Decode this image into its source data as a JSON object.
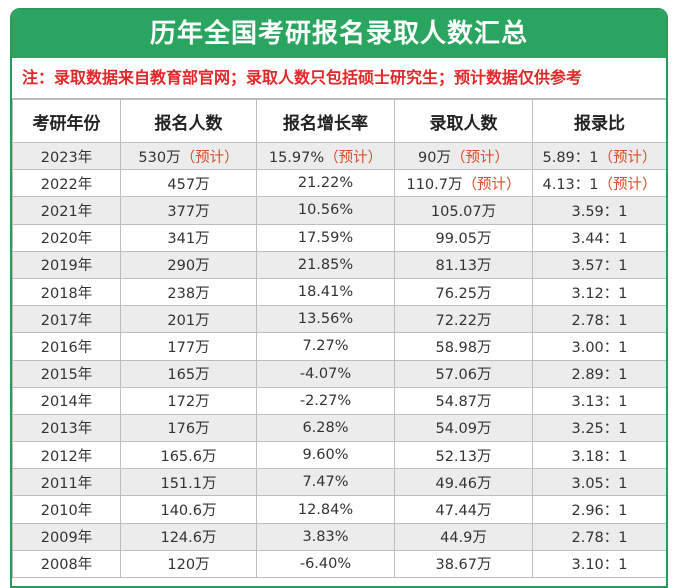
{
  "title": "历年全国考研报名录取人数汇总",
  "note": "注：录取数据来自教育部官网；录取人数只包括硕士研究生；预计数据仅供参考",
  "colors": {
    "header_green": "#2aa55f",
    "note_red": "#e0282a",
    "estimate": "#d94b2b"
  },
  "columns": [
    "考研年份",
    "报名人数",
    "报名增长率",
    "录取人数",
    "报录比"
  ],
  "rows": [
    {
      "year": "2023年",
      "applicants": "530万",
      "applicants_note": "（预计）",
      "growth": "15.97%",
      "growth_note": "（预计）",
      "admitted": "90万",
      "admitted_note": "（预计）",
      "ratio": "5.89：1",
      "ratio_note": "（预计）"
    },
    {
      "year": "2022年",
      "applicants": "457万",
      "applicants_note": "",
      "growth": "21.22%",
      "growth_note": "",
      "admitted": "110.7万",
      "admitted_note": "（预计）",
      "ratio": "4.13：1",
      "ratio_note": "（预计）"
    },
    {
      "year": "2021年",
      "applicants": "377万",
      "applicants_note": "",
      "growth": "10.56%",
      "growth_note": "",
      "admitted": "105.07万",
      "admitted_note": "",
      "ratio": "3.59：1",
      "ratio_note": ""
    },
    {
      "year": "2020年",
      "applicants": "341万",
      "applicants_note": "",
      "growth": "17.59%",
      "growth_note": "",
      "admitted": "99.05万",
      "admitted_note": "",
      "ratio": "3.44：1",
      "ratio_note": ""
    },
    {
      "year": "2019年",
      "applicants": "290万",
      "applicants_note": "",
      "growth": "21.85%",
      "growth_note": "",
      "admitted": "81.13万",
      "admitted_note": "",
      "ratio": "3.57：1",
      "ratio_note": ""
    },
    {
      "year": "2018年",
      "applicants": "238万",
      "applicants_note": "",
      "growth": "18.41%",
      "growth_note": "",
      "admitted": "76.25万",
      "admitted_note": "",
      "ratio": "3.12：1",
      "ratio_note": ""
    },
    {
      "year": "2017年",
      "applicants": "201万",
      "applicants_note": "",
      "growth": "13.56%",
      "growth_note": "",
      "admitted": "72.22万",
      "admitted_note": "",
      "ratio": "2.78：1",
      "ratio_note": ""
    },
    {
      "year": "2016年",
      "applicants": "177万",
      "applicants_note": "",
      "growth": "7.27%",
      "growth_note": "",
      "admitted": "58.98万",
      "admitted_note": "",
      "ratio": "3.00：1",
      "ratio_note": ""
    },
    {
      "year": "2015年",
      "applicants": "165万",
      "applicants_note": "",
      "growth": "-4.07%",
      "growth_note": "",
      "admitted": "57.06万",
      "admitted_note": "",
      "ratio": "2.89：1",
      "ratio_note": ""
    },
    {
      "year": "2014年",
      "applicants": "172万",
      "applicants_note": "",
      "growth": "-2.27%",
      "growth_note": "",
      "admitted": "54.87万",
      "admitted_note": "",
      "ratio": "3.13：1",
      "ratio_note": ""
    },
    {
      "year": "2013年",
      "applicants": "176万",
      "applicants_note": "",
      "growth": "6.28%",
      "growth_note": "",
      "admitted": "54.09万",
      "admitted_note": "",
      "ratio": "3.25：1",
      "ratio_note": ""
    },
    {
      "year": "2012年",
      "applicants": "165.6万",
      "applicants_note": "",
      "growth": "9.60%",
      "growth_note": "",
      "admitted": "52.13万",
      "admitted_note": "",
      "ratio": "3.18：1",
      "ratio_note": ""
    },
    {
      "year": "2011年",
      "applicants": "151.1万",
      "applicants_note": "",
      "growth": "7.47%",
      "growth_note": "",
      "admitted": "49.46万",
      "admitted_note": "",
      "ratio": "3.05：1",
      "ratio_note": ""
    },
    {
      "year": "2010年",
      "applicants": "140.6万",
      "applicants_note": "",
      "growth": "12.84%",
      "growth_note": "",
      "admitted": "47.44万",
      "admitted_note": "",
      "ratio": "2.96：1",
      "ratio_note": ""
    },
    {
      "year": "2009年",
      "applicants": "124.6万",
      "applicants_note": "",
      "growth": "3.83%",
      "growth_note": "",
      "admitted": "44.9万",
      "admitted_note": "",
      "ratio": "2.78：1",
      "ratio_note": ""
    },
    {
      "year": "2008年",
      "applicants": "120万",
      "applicants_note": "",
      "growth": "-6.40%",
      "growth_note": "",
      "admitted": "38.67万",
      "admitted_note": "",
      "ratio": "3.10：1",
      "ratio_note": ""
    }
  ]
}
